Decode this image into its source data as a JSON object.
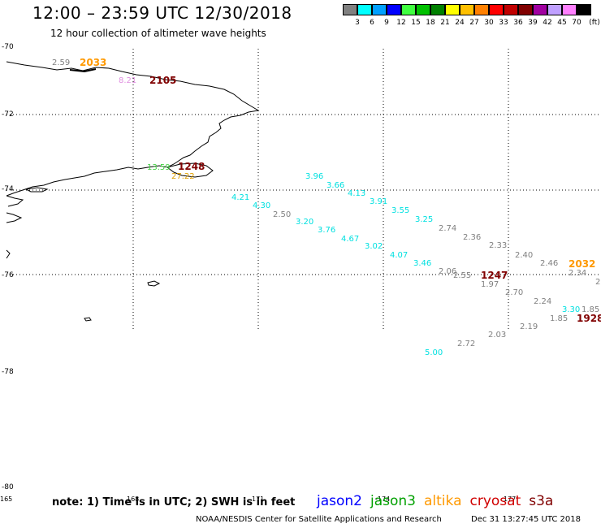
{
  "header": {
    "title": "12:00 – 23:59 UTC 12/30/2018",
    "subtitle": "12 hour collection of altimeter wave heights"
  },
  "colorbar": {
    "unit": "(ft)",
    "bins": [
      {
        "label": "3",
        "color": "#808080"
      },
      {
        "label": "6",
        "color": "#00ffff"
      },
      {
        "label": "9",
        "color": "#00a0ff"
      },
      {
        "label": "12",
        "color": "#0000ff"
      },
      {
        "label": "15",
        "color": "#40ff40"
      },
      {
        "label": "18",
        "color": "#00c000"
      },
      {
        "label": "21",
        "color": "#008000"
      },
      {
        "label": "24",
        "color": "#ffff00"
      },
      {
        "label": "27",
        "color": "#ffc000"
      },
      {
        "label": "30",
        "color": "#ff8000"
      },
      {
        "label": "33",
        "color": "#ff0000"
      },
      {
        "label": "36",
        "color": "#c00000"
      },
      {
        "label": "39",
        "color": "#800000"
      },
      {
        "label": "42",
        "color": "#a000a0"
      },
      {
        "label": "45",
        "color": "#c0a0ff"
      },
      {
        "label": "70",
        "color": "#ff80ff"
      },
      {
        "label": "",
        "color": "#000000"
      }
    ]
  },
  "map": {
    "lat_labels": [
      {
        "label": "-70",
        "lat": -70
      },
      {
        "label": "-72",
        "lat": -72
      },
      {
        "label": "-74",
        "lat": -74
      },
      {
        "label": "-76",
        "lat": -76
      },
      {
        "label": "-78",
        "lat": -78
      },
      {
        "label": "-80",
        "lat": -80
      }
    ],
    "lon_labels": [
      "165",
      "168",
      "171",
      "-174",
      "177"
    ],
    "swh_values": [
      {
        "text": "2.59",
        "color": "#808080"
      },
      {
        "text": "8.21",
        "color": "#e090e0"
      },
      {
        "text": "13.59",
        "color": "#40d040"
      },
      {
        "text": "27.22",
        "color": "#e0a000"
      },
      {
        "text": "3.96",
        "color": "#00e0e0"
      },
      {
        "text": "3.66",
        "color": "#00e0e0"
      },
      {
        "text": "4.13",
        "color": "#00e0e0"
      },
      {
        "text": "3.91",
        "color": "#00e0e0"
      },
      {
        "text": "3.55",
        "color": "#00e0e0"
      },
      {
        "text": "3.25",
        "color": "#00e0e0"
      },
      {
        "text": "4.21",
        "color": "#00e0e0"
      },
      {
        "text": "4.30",
        "color": "#00e0e0"
      },
      {
        "text": "2.50",
        "color": "#808080"
      },
      {
        "text": "3.20",
        "color": "#00e0e0"
      },
      {
        "text": "3.76",
        "color": "#00e0e0"
      },
      {
        "text": "4.67",
        "color": "#00e0e0"
      },
      {
        "text": "3.02",
        "color": "#00e0e0"
      },
      {
        "text": "4.07",
        "color": "#00e0e0"
      },
      {
        "text": "3.46",
        "color": "#00e0e0"
      },
      {
        "text": "2.74",
        "color": "#808080"
      },
      {
        "text": "2.36",
        "color": "#808080"
      },
      {
        "text": "2.33",
        "color": "#808080"
      },
      {
        "text": "2.40",
        "color": "#808080"
      },
      {
        "text": "2.46",
        "color": "#808080"
      },
      {
        "text": "2.34",
        "color": "#808080"
      },
      {
        "text": "2.06",
        "color": "#808080"
      },
      {
        "text": "2.55",
        "color": "#808080"
      },
      {
        "text": "1.97",
        "color": "#808080"
      },
      {
        "text": "2.70",
        "color": "#808080"
      },
      {
        "text": "2.24",
        "color": "#808080"
      },
      {
        "text": "3.30",
        "color": "#00e0e0"
      },
      {
        "text": "1.85",
        "color": "#808080"
      },
      {
        "text": "1.85",
        "color": "#808080"
      },
      {
        "text": "2.19",
        "color": "#808080"
      },
      {
        "text": "2.03",
        "color": "#808080"
      },
      {
        "text": "2.72",
        "color": "#808080"
      },
      {
        "text": "5.00",
        "color": "#00e0e0"
      },
      {
        "text": "2",
        "color": "#808080"
      }
    ],
    "pass_times": [
      {
        "text": "2033",
        "color": "#ff9900"
      },
      {
        "text": "2105",
        "color": "#800000"
      },
      {
        "text": "1248",
        "color": "#800000"
      },
      {
        "text": "2032",
        "color": "#ff9900"
      },
      {
        "text": "1247",
        "color": "#800000"
      },
      {
        "text": "1928",
        "color": "#800000"
      }
    ]
  },
  "footer": {
    "note": "note: 1) Time is in UTC; 2) SWH is in feet",
    "satellites": [
      {
        "name": "jason2",
        "color": "#0000ff"
      },
      {
        "name": "jason3",
        "color": "#00a000"
      },
      {
        "name": "altika",
        "color": "#ff9900"
      },
      {
        "name": "cryosat",
        "color": "#d00000"
      },
      {
        "name": "s3a",
        "color": "#800000"
      }
    ],
    "credit": "NOAA/NESDIS Center for Satellite Applications and Research",
    "generated": "Dec 31 13:27:45 UTC 2018"
  }
}
